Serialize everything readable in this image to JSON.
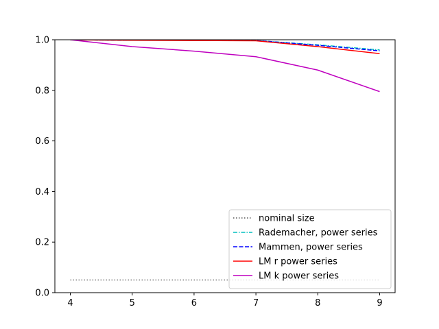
{
  "chart_data": {
    "type": "line",
    "title": "",
    "xlabel": "",
    "ylabel": "",
    "xlim": [
      3.75,
      9.25
    ],
    "ylim": [
      0.0,
      1.0
    ],
    "xticks": [
      "4",
      "5",
      "6",
      "7",
      "8",
      "9"
    ],
    "yticks": [
      "0.0",
      "0.2",
      "0.4",
      "0.6",
      "0.8",
      "1.0"
    ],
    "grid": false,
    "legend_position": "bottom-right",
    "x": [
      4,
      5,
      6,
      7,
      8,
      9
    ],
    "series": [
      {
        "name": "nominal size",
        "color": "#000000",
        "dash": "dotted",
        "values": [
          0.05,
          0.05,
          0.05,
          0.05,
          0.05,
          0.05
        ]
      },
      {
        "name": "Rademacher, power series",
        "color": "#00bfbf",
        "dash": "dashdot",
        "values": [
          1.0,
          0.998,
          0.998,
          0.997,
          0.98,
          0.96
        ]
      },
      {
        "name": "Mammen, power series",
        "color": "#0000ff",
        "dash": "dashed",
        "values": [
          1.0,
          0.998,
          0.998,
          0.997,
          0.978,
          0.956
        ]
      },
      {
        "name": "LM r power series",
        "color": "#ff0000",
        "dash": "solid",
        "values": [
          1.0,
          0.998,
          0.997,
          0.996,
          0.973,
          0.945
        ]
      },
      {
        "name": "LM k power series",
        "color": "#bf00bf",
        "dash": "solid",
        "values": [
          1.0,
          0.973,
          0.955,
          0.933,
          0.88,
          0.795
        ]
      }
    ]
  }
}
